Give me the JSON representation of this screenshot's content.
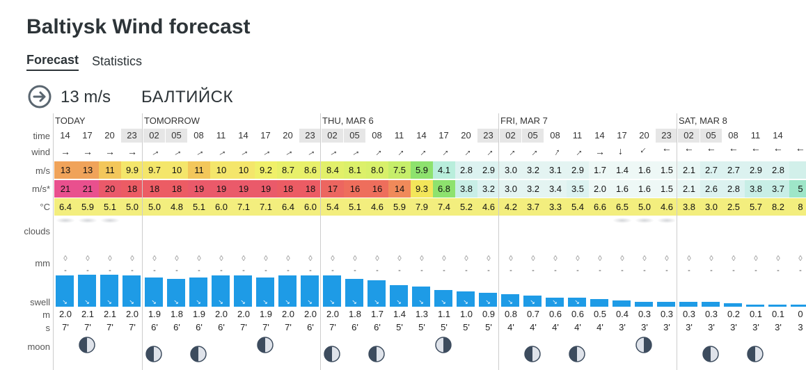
{
  "page": {
    "title": "Baltiysk Wind forecast"
  },
  "tabs": [
    {
      "label": "Forecast",
      "active": true
    },
    {
      "label": "Statistics",
      "active": false
    }
  ],
  "spot": {
    "speed": "13 m/s",
    "name": "БАЛТИЙСК",
    "icon": "circle-arrow-right-icon"
  },
  "row_labels": {
    "time": "time",
    "wind": "wind",
    "ms": "m/s",
    "gust": "m/s*",
    "temp": "°C",
    "clouds": "clouds",
    "rain": "mm",
    "swell": "swell",
    "swell_height": "m",
    "swell_period": "s",
    "moon": "moon"
  },
  "colors": {
    "grid_line": "#cccccc",
    "night_bg": "#e6e6e6",
    "swell_bar": "#1e9be6",
    "temp_bg": "#f3ee7e",
    "moon_light": "#dfe3ea",
    "moon_dark": "#3d4c5e"
  },
  "days": [
    {
      "label": "TODAY",
      "start": 0
    },
    {
      "label": "TOMORROW",
      "start": 4
    },
    {
      "label": "THU, MAR 6",
      "start": 12
    },
    {
      "label": "FRI, MAR 7",
      "start": 20
    },
    {
      "label": "SAT, MAR 8",
      "start": 28
    }
  ],
  "columns": [
    {
      "hour": "14",
      "night": false,
      "dir": 90,
      "speed": "13",
      "gust": "21",
      "temp": "6.4",
      "bg": "#f0a35a",
      "gbg": "#e9508e",
      "rain": "-",
      "swell_m": "2.0",
      "swell_s": "7'",
      "swell_level": 0.97,
      "moon": null
    },
    {
      "hour": "17",
      "night": false,
      "dir": 90,
      "speed": "13",
      "gust": "21",
      "temp": "5.9",
      "bg": "#f0a35a",
      "gbg": "#e9508e",
      "rain": "-",
      "swell_m": "2.1",
      "swell_s": "7'",
      "swell_level": 1.0,
      "moon": "wan"
    },
    {
      "hour": "20",
      "night": false,
      "dir": 90,
      "speed": "11",
      "gust": "20",
      "temp": "5.1",
      "bg": "#f3c75b",
      "gbg": "#ea5a6a",
      "rain": "-",
      "swell_m": "2.1",
      "swell_s": "7'",
      "swell_level": 1.0,
      "moon": null
    },
    {
      "hour": "23",
      "night": true,
      "dir": 90,
      "speed": "9.9",
      "gust": "18",
      "temp": "5.0",
      "bg": "#f4e66b",
      "gbg": "#ec5c64",
      "rain": "-",
      "swell_m": "2.0",
      "swell_s": "7'",
      "swell_level": 0.97,
      "moon": null
    },
    {
      "hour": "02",
      "night": true,
      "dir": 60,
      "speed": "9.7",
      "gust": "18",
      "temp": "5.0",
      "bg": "#f4e66b",
      "gbg": "#ec5c64",
      "rain": "-",
      "swell_m": "1.9",
      "swell_s": "6'",
      "swell_level": 0.92,
      "moon": "wan2"
    },
    {
      "hour": "05",
      "night": true,
      "dir": 60,
      "speed": "10",
      "gust": "18",
      "temp": "4.8",
      "bg": "#f4e66b",
      "gbg": "#ec5c64",
      "rain": "-",
      "swell_m": "1.8",
      "swell_s": "6'",
      "swell_level": 0.87,
      "moon": null
    },
    {
      "hour": "08",
      "night": false,
      "dir": 60,
      "speed": "11",
      "gust": "19",
      "temp": "5.1",
      "bg": "#f3c75b",
      "gbg": "#ea5a6a",
      "rain": "-",
      "swell_m": "1.9",
      "swell_s": "6'",
      "swell_level": 0.92,
      "moon": "wan2"
    },
    {
      "hour": "11",
      "night": false,
      "dir": 60,
      "speed": "10",
      "gust": "19",
      "temp": "6.0",
      "bg": "#f4e66b",
      "gbg": "#ea5a6a",
      "rain": "-",
      "swell_m": "2.0",
      "swell_s": "6'",
      "swell_level": 0.97,
      "moon": null
    },
    {
      "hour": "14",
      "night": false,
      "dir": 60,
      "speed": "10",
      "gust": "19",
      "temp": "7.1",
      "bg": "#f4e66b",
      "gbg": "#ea5a6a",
      "rain": "-",
      "swell_m": "2.0",
      "swell_s": "7'",
      "swell_level": 0.97,
      "moon": null
    },
    {
      "hour": "17",
      "night": false,
      "dir": 60,
      "speed": "9.2",
      "gust": "19",
      "temp": "7.1",
      "bg": "#f0f06a",
      "gbg": "#ea5a6a",
      "rain": "-",
      "swell_m": "1.9",
      "swell_s": "7'",
      "swell_level": 0.92,
      "moon": "wan"
    },
    {
      "hour": "20",
      "night": false,
      "dir": 60,
      "speed": "8.7",
      "gust": "18",
      "temp": "6.4",
      "bg": "#e8f06a",
      "gbg": "#ec5c64",
      "rain": "-",
      "swell_m": "2.0",
      "swell_s": "7'",
      "swell_level": 0.97,
      "moon": null
    },
    {
      "hour": "23",
      "night": true,
      "dir": 60,
      "speed": "8.6",
      "gust": "18",
      "temp": "6.0",
      "bg": "#e8f06a",
      "gbg": "#ec5c64",
      "rain": "-",
      "swell_m": "2.0",
      "swell_s": "6'",
      "swell_level": 0.97,
      "moon": null
    },
    {
      "hour": "02",
      "night": true,
      "dir": 60,
      "speed": "8.4",
      "gust": "17",
      "temp": "5.4",
      "bg": "#e2f06a",
      "gbg": "#ec6660",
      "rain": "-",
      "swell_m": "2.0",
      "swell_s": "7'",
      "swell_level": 0.97,
      "moon": "wan2"
    },
    {
      "hour": "05",
      "night": true,
      "dir": 60,
      "speed": "8.1",
      "gust": "16",
      "temp": "5.1",
      "bg": "#dcf06a",
      "gbg": "#ee6e5c",
      "rain": "-",
      "swell_m": "1.8",
      "swell_s": "6'",
      "swell_level": 0.87,
      "moon": null
    },
    {
      "hour": "08",
      "night": false,
      "dir": 45,
      "speed": "8.0",
      "gust": "16",
      "temp": "4.6",
      "bg": "#d8f06a",
      "gbg": "#ee6e5c",
      "rain": "-",
      "swell_m": "1.7",
      "swell_s": "6'",
      "swell_level": 0.82,
      "moon": "wan2"
    },
    {
      "hour": "11",
      "night": false,
      "dir": 45,
      "speed": "7.5",
      "gust": "14",
      "temp": "5.9",
      "bg": "#c6ee6a",
      "gbg": "#f08a5a",
      "rain": "-",
      "swell_m": "1.4",
      "swell_s": "5'",
      "swell_level": 0.68,
      "moon": null
    },
    {
      "hour": "14",
      "night": false,
      "dir": 45,
      "speed": "5.9",
      "gust": "9.3",
      "temp": "7.9",
      "bg": "#8ee26e",
      "gbg": "#f3e65a",
      "rain": "-",
      "swell_m": "1.3",
      "swell_s": "5'",
      "swell_level": 0.63,
      "moon": null
    },
    {
      "hour": "17",
      "night": false,
      "dir": 45,
      "speed": "4.1",
      "gust": "6.8",
      "temp": "7.4",
      "bg": "#b9eedc",
      "gbg": "#8ee26e",
      "rain": "-",
      "swell_m": "1.1",
      "swell_s": "5'",
      "swell_level": 0.53,
      "moon": "full"
    },
    {
      "hour": "20",
      "night": false,
      "dir": 45,
      "speed": "2.8",
      "gust": "3.8",
      "temp": "5.2",
      "bg": "#dcf2f0",
      "gbg": "#c8eee6",
      "rain": "-",
      "swell_m": "1.0",
      "swell_s": "5'",
      "swell_level": 0.48,
      "moon": null
    },
    {
      "hour": "23",
      "night": true,
      "dir": 45,
      "speed": "2.9",
      "gust": "3.2",
      "temp": "4.6",
      "bg": "#dcf2f0",
      "gbg": "#dcf2f0",
      "rain": "-",
      "swell_m": "0.9",
      "swell_s": "5'",
      "swell_level": 0.43,
      "moon": null
    },
    {
      "hour": "02",
      "night": true,
      "dir": 45,
      "speed": "3.0",
      "gust": "3.0",
      "temp": "4.2",
      "bg": "#e4f4f2",
      "gbg": "#e4f4f2",
      "rain": "-",
      "swell_m": "0.8",
      "swell_s": "4'",
      "swell_level": 0.39,
      "moon": null
    },
    {
      "hour": "05",
      "night": true,
      "dir": 45,
      "speed": "3.2",
      "gust": "3.2",
      "temp": "3.7",
      "bg": "#e4f4f2",
      "gbg": "#e4f4f2",
      "rain": "-",
      "swell_m": "0.7",
      "swell_s": "4'",
      "swell_level": 0.34,
      "moon": "wan2"
    },
    {
      "hour": "08",
      "night": false,
      "dir": 30,
      "speed": "3.1",
      "gust": "3.4",
      "temp": "3.3",
      "bg": "#e4f4f2",
      "gbg": "#e4f4f2",
      "rain": "-",
      "swell_m": "0.6",
      "swell_s": "4'",
      "swell_level": 0.29,
      "moon": null
    },
    {
      "hour": "11",
      "night": false,
      "dir": 45,
      "speed": "2.9",
      "gust": "3.5",
      "temp": "5.4",
      "bg": "#e4f4f2",
      "gbg": "#dcf2f0",
      "rain": "-",
      "swell_m": "0.6",
      "swell_s": "4'",
      "swell_level": 0.29,
      "moon": "wan2"
    },
    {
      "hour": "14",
      "night": false,
      "dir": 90,
      "speed": "1.7",
      "gust": "2.0",
      "temp": "6.6",
      "bg": "#eef8f6",
      "gbg": "#eef8f6",
      "rain": "-",
      "swell_m": "0.5",
      "swell_s": "4'",
      "swell_level": 0.24,
      "moon": null
    },
    {
      "hour": "17",
      "night": false,
      "dir": 180,
      "speed": "1.4",
      "gust": "1.6",
      "temp": "6.5",
      "bg": "#eef8f6",
      "gbg": "#eef8f6",
      "rain": "-",
      "swell_m": "0.4",
      "swell_s": "3'",
      "swell_level": 0.19,
      "moon": null
    },
    {
      "hour": "20",
      "night": false,
      "dir": 225,
      "speed": "1.6",
      "gust": "1.6",
      "temp": "5.0",
      "bg": "#eef8f6",
      "gbg": "#eef8f6",
      "rain": "-",
      "swell_m": "0.3",
      "swell_s": "3'",
      "swell_level": 0.15,
      "moon": "full"
    },
    {
      "hour": "23",
      "night": true,
      "dir": 270,
      "speed": "1.5",
      "gust": "1.5",
      "temp": "4.6",
      "bg": "#eef8f6",
      "gbg": "#eef8f6",
      "rain": "-",
      "swell_m": "0.3",
      "swell_s": "3'",
      "swell_level": 0.15,
      "moon": null
    },
    {
      "hour": "02",
      "night": true,
      "dir": 270,
      "speed": "2.1",
      "gust": "2.1",
      "temp": "3.8",
      "bg": "#e8f6f4",
      "gbg": "#e8f6f4",
      "rain": "-",
      "swell_m": "0.3",
      "swell_s": "3'",
      "swell_level": 0.15,
      "moon": null
    },
    {
      "hour": "05",
      "night": true,
      "dir": 270,
      "speed": "2.7",
      "gust": "2.6",
      "temp": "3.0",
      "bg": "#dcf2f0",
      "gbg": "#dcf2f0",
      "rain": "-",
      "swell_m": "0.3",
      "swell_s": "3'",
      "swell_level": 0.15,
      "moon": "wan2"
    },
    {
      "hour": "08",
      "night": false,
      "dir": 270,
      "speed": "2.7",
      "gust": "2.8",
      "temp": "2.5",
      "bg": "#dcf2f0",
      "gbg": "#dcf2f0",
      "rain": "-",
      "swell_m": "0.2",
      "swell_s": "3'",
      "swell_level": 0.1,
      "moon": null
    },
    {
      "hour": "11",
      "night": false,
      "dir": 270,
      "speed": "2.9",
      "gust": "3.8",
      "temp": "5.7",
      "bg": "#dcf2f0",
      "gbg": "#c8eee6",
      "rain": "-",
      "swell_m": "0.1",
      "swell_s": "3'",
      "swell_level": 0.07,
      "moon": "wan2"
    },
    {
      "hour": "14",
      "night": false,
      "dir": 270,
      "speed": "2.8",
      "gust": "3.7",
      "temp": "8.2",
      "bg": "#dcf2f0",
      "gbg": "#c8eee6",
      "rain": "-",
      "swell_m": "0.1",
      "swell_s": "3'",
      "swell_level": 0.07,
      "moon": null
    },
    {
      "hour": "",
      "night": false,
      "dir": 270,
      "speed": "",
      "gust": "5",
      "temp": "8",
      "bg": "#d2f0ea",
      "gbg": "#9ee6c8",
      "rain": "-",
      "swell_m": "0",
      "swell_s": "3",
      "swell_level": 0.05,
      "moon": null
    }
  ]
}
